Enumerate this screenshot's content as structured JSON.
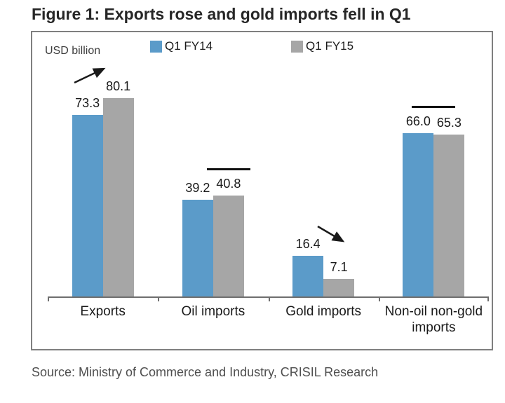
{
  "figure": {
    "source": "Source: Ministry of Commerce and Industry, CRISIL Research"
  },
  "chart_data": {
    "type": "bar",
    "title": "Figure 1: Exports rose and gold imports fell in Q1",
    "unit_label": "USD billion",
    "categories": [
      "Exports",
      "Oil imports",
      "Gold imports",
      "Non-oil non-gold imports"
    ],
    "series": [
      {
        "name": "Q1 FY14",
        "color": "#5b9bc9",
        "values": [
          73.3,
          39.2,
          16.4,
          66.0
        ]
      },
      {
        "name": "Q1 FY15",
        "color": "#a6a6a6",
        "values": [
          80.1,
          40.8,
          7.1,
          65.3
        ]
      }
    ],
    "annotations": [
      {
        "category": "Exports",
        "type": "rise",
        "glyph": "up-right-arrow"
      },
      {
        "category": "Oil imports",
        "type": "flat",
        "glyph": "horizontal-bar"
      },
      {
        "category": "Gold imports",
        "type": "fall",
        "glyph": "down-right-arrow"
      },
      {
        "category": "Non-oil non-gold imports",
        "type": "flat",
        "glyph": "horizontal-bar"
      }
    ],
    "xlabel": "",
    "ylabel": "USD billion",
    "ylim": [
      0,
      85
    ],
    "grid": false,
    "legend_position": "top"
  },
  "colors": {
    "fy14_blue": "#5b9bc9",
    "fy15_gray": "#a6a6a6",
    "frame_border": "#7f7f7f",
    "axis_line": "#6e6e6e",
    "annotation_black": "#1a1a1a",
    "title_text": "#262626",
    "source_text": "#4f4f4f"
  }
}
